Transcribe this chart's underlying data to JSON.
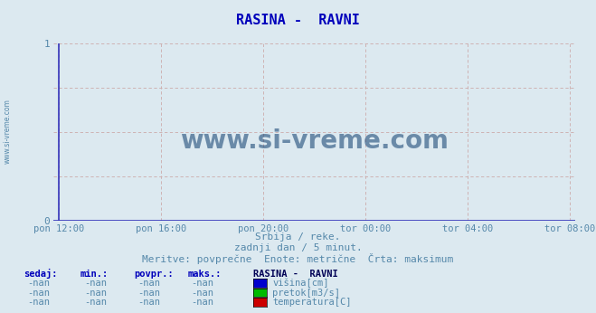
{
  "title": "RASINA -  RAVNI",
  "title_color": "#0000bb",
  "bg_color": "#dce9f0",
  "plot_bg_color": "#dce9f0",
  "grid_color_h": "#ccaaaa",
  "grid_color_v": "#ccaaaa",
  "axis_line_color": "#3333bb",
  "arrow_color": "#cc2200",
  "tick_color": "#5588aa",
  "ylim": [
    0,
    1
  ],
  "xtick_labels": [
    "pon 12:00",
    "pon 16:00",
    "pon 20:00",
    "tor 00:00",
    "tor 04:00",
    "tor 08:00"
  ],
  "xtick_positions": [
    0.0,
    0.2,
    0.4,
    0.6,
    0.8,
    1.0
  ],
  "watermark": "www.si-vreme.com",
  "watermark_color": "#0d3d6e",
  "subtitle1": "Srbija / reke.",
  "subtitle2": "zadnji dan / 5 minut.",
  "subtitle3": "Meritve: povprečne  Enote: metrične  Črta: maksimum",
  "subtitle_color": "#5588aa",
  "legend_title": "RASINA -  RAVNI",
  "legend_title_color": "#000055",
  "legend_items": [
    {
      "label": "višina[cm]",
      "color": "#0000cc"
    },
    {
      "label": "pretok[m3/s]",
      "color": "#00bb00"
    },
    {
      "label": "temperatura[C]",
      "color": "#cc0000"
    }
  ],
  "legend_label_color": "#5588aa",
  "table_headers": [
    "sedaj:",
    "min.:",
    "povpr.:",
    "maks.:"
  ],
  "table_header_color": "#0000bb",
  "table_value": "-nan",
  "table_value_color": "#5588aa",
  "side_text": "www.si-vreme.com",
  "side_text_color": "#5588aa"
}
